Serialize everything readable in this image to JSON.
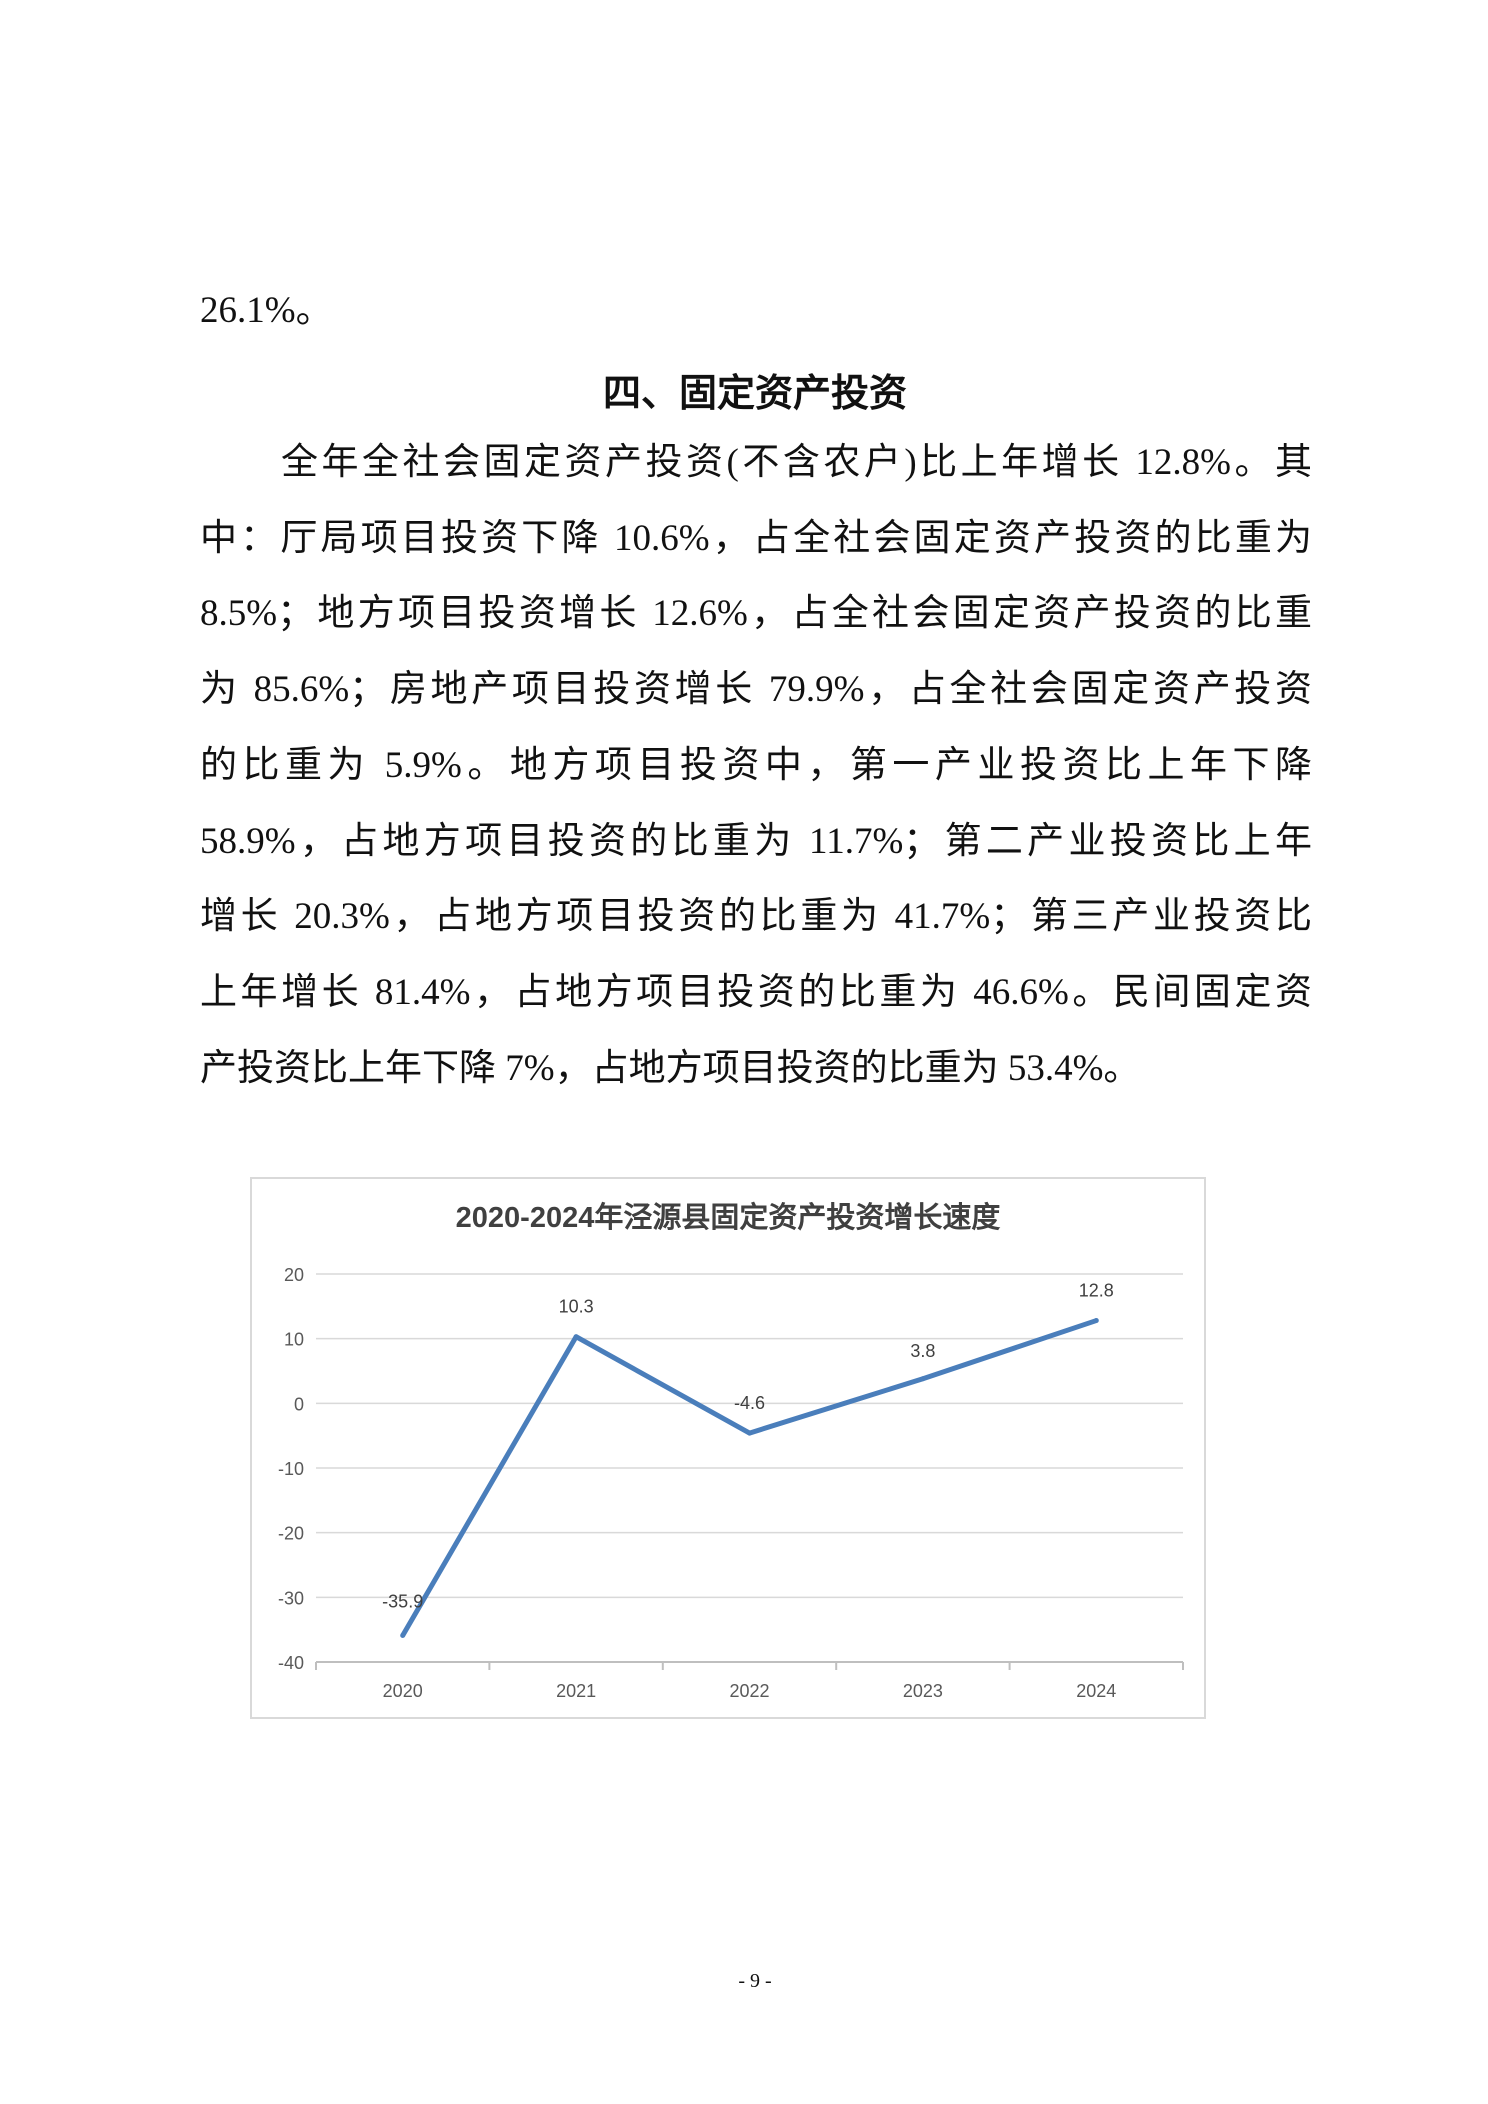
{
  "prev_paragraph_tail": "26.1%。",
  "section_heading": "四、固定资产投资",
  "paragraph_lines": [
    "　　全年全社会固定资产投资(不含农户)比上年增长 12.8%。其",
    "中：厅局项目投资下降 10.6%，占全社会固定资产投资的比重为",
    "8.5%；地方项目投资增长 12.6%，占全社会固定资产投资的比重",
    "为 85.6%；房地产项目投资增长 79.9%，占全社会固定资产投资",
    "的比重为 5.9%。地方项目投资中，第一产业投资比上年下降",
    "58.9%，占地方项目投资的比重为 11.7%；第二产业投资比上年",
    "增长 20.3%，占地方项目投资的比重为 41.7%；第三产业投资比",
    "上年增长 81.4%，占地方项目投资的比重为 46.6%。民间固定资",
    "产投资比上年下降 7%，占地方项目投资的比重为 53.4%。"
  ],
  "chart_data": {
    "type": "line",
    "title": "2020-2024年泾源县固定资产投资增长速度",
    "categories": [
      "2020",
      "2021",
      "2022",
      "2023",
      "2024"
    ],
    "values": [
      -35.9,
      10.3,
      -4.6,
      3.8,
      12.8
    ],
    "data_labels": [
      "-35.9",
      "10.3",
      "-4.6",
      "3.8",
      "12.8"
    ],
    "ylim": [
      -40,
      20
    ],
    "yticks": [
      "20",
      "10",
      "0",
      "-10",
      "-20",
      "-30",
      "-40"
    ],
    "ytick_values": [
      20,
      10,
      0,
      -10,
      -20,
      -30,
      -40
    ],
    "grid": true,
    "line_color": "#4a7ebb",
    "legend": "none"
  },
  "page_number": "- 9 -"
}
